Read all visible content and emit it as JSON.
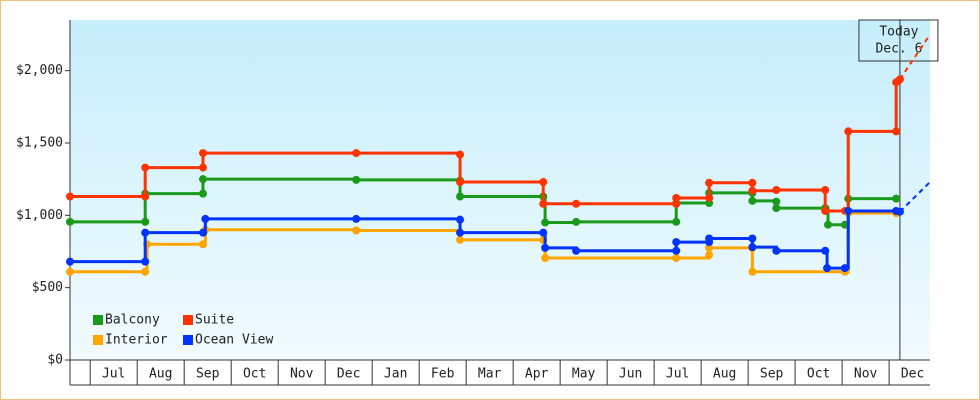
{
  "chart_data": {
    "type": "step-line",
    "legend": "lower left",
    "ylim": [
      0,
      2350
    ],
    "yticks": [
      {
        "value": 0,
        "label": "$0"
      },
      {
        "value": 500,
        "label": "$500"
      },
      {
        "value": 1000,
        "label": "$1,000"
      },
      {
        "value": 1500,
        "label": "$1,500"
      },
      {
        "value": 2000,
        "label": "$2,000"
      }
    ],
    "xlim": [
      -0.43,
      17.87
    ],
    "xticks": [
      {
        "value": 0.5,
        "label": "Jul"
      },
      {
        "value": 1.5,
        "label": "Aug"
      },
      {
        "value": 2.5,
        "label": "Sep"
      },
      {
        "value": 3.5,
        "label": "Oct"
      },
      {
        "value": 4.5,
        "label": "Nov"
      },
      {
        "value": 5.5,
        "label": "Dec"
      },
      {
        "value": 6.5,
        "label": "Jan"
      },
      {
        "value": 7.5,
        "label": "Feb"
      },
      {
        "value": 8.5,
        "label": "Mar"
      },
      {
        "value": 9.5,
        "label": "Apr"
      },
      {
        "value": 10.5,
        "label": "May"
      },
      {
        "value": 11.5,
        "label": "Jun"
      },
      {
        "value": 12.5,
        "label": "Jul"
      },
      {
        "value": 13.5,
        "label": "Aug"
      },
      {
        "value": 14.5,
        "label": "Sep"
      },
      {
        "value": 15.5,
        "label": "Oct"
      },
      {
        "value": 16.5,
        "label": "Nov"
      },
      {
        "value": 17.5,
        "label": "Dec"
      }
    ],
    "annotation": {
      "x": 17.23,
      "lines": [
        "Today",
        "Dec. 6"
      ]
    },
    "series": [
      {
        "name": "Balcony",
        "color": "#1a9a1a",
        "x": [
          -0.43,
          1.17,
          1.17,
          2.4,
          2.4,
          5.66,
          7.87,
          7.87,
          9.64,
          9.68,
          10.34,
          12.47,
          12.47,
          13.17,
          13.17,
          14.09,
          14.09,
          14.6,
          14.6,
          15.64,
          15.7,
          16.06,
          16.13,
          17.15
        ],
        "values": [
          955,
          955,
          1150,
          1150,
          1250,
          1245,
          1240,
          1130,
          1130,
          950,
          955,
          955,
          1085,
          1085,
          1155,
          1155,
          1100,
          1095,
          1050,
          1050,
          935,
          935,
          1115,
          1115
        ]
      },
      {
        "name": "Suite",
        "color": "#ff3300",
        "x": [
          -0.43,
          1.17,
          1.17,
          2.4,
          2.4,
          5.66,
          7.87,
          7.87,
          9.64,
          9.64,
          10.34,
          12.47,
          12.47,
          13.17,
          13.17,
          14.09,
          14.09,
          14.6,
          15.64,
          15.64,
          16.06,
          16.13,
          17.15,
          17.15,
          17.23
        ],
        "values": [
          1130,
          1130,
          1330,
          1330,
          1430,
          1430,
          1420,
          1230,
          1230,
          1080,
          1080,
          1080,
          1120,
          1120,
          1225,
          1225,
          1170,
          1175,
          1175,
          1030,
          1030,
          1580,
          1580,
          1920,
          1940
        ],
        "forecast_x": [
          17.23,
          17.87
        ],
        "forecast_values": [
          1940,
          2250
        ]
      },
      {
        "name": "Interior",
        "color": "#ffa500",
        "x": [
          -0.43,
          1.17,
          1.21,
          2.4,
          2.45,
          5.66,
          7.87,
          9.64,
          9.68,
          12.47,
          13.17,
          13.17,
          14.09,
          14.09,
          16.06,
          16.13,
          17.15
        ],
        "values": [
          610,
          610,
          800,
          800,
          900,
          895,
          830,
          830,
          705,
          705,
          725,
          775,
          775,
          610,
          610,
          1015,
          1015
        ]
      },
      {
        "name": "Ocean View",
        "color": "#0033ff",
        "x": [
          -0.43,
          1.17,
          1.17,
          2.4,
          2.45,
          5.66,
          7.87,
          7.87,
          9.64,
          9.68,
          10.34,
          12.47,
          12.47,
          13.17,
          13.17,
          14.09,
          14.09,
          14.6,
          15.64,
          15.68,
          16.06,
          16.13,
          17.15,
          17.23
        ],
        "values": [
          680,
          680,
          880,
          880,
          975,
          975,
          970,
          880,
          880,
          775,
          755,
          755,
          815,
          815,
          840,
          840,
          780,
          755,
          755,
          635,
          635,
          1030,
          1030,
          1025
        ],
        "forecast_x": [
          17.23,
          17.87
        ],
        "forecast_values": [
          1025,
          1230
        ]
      }
    ]
  }
}
